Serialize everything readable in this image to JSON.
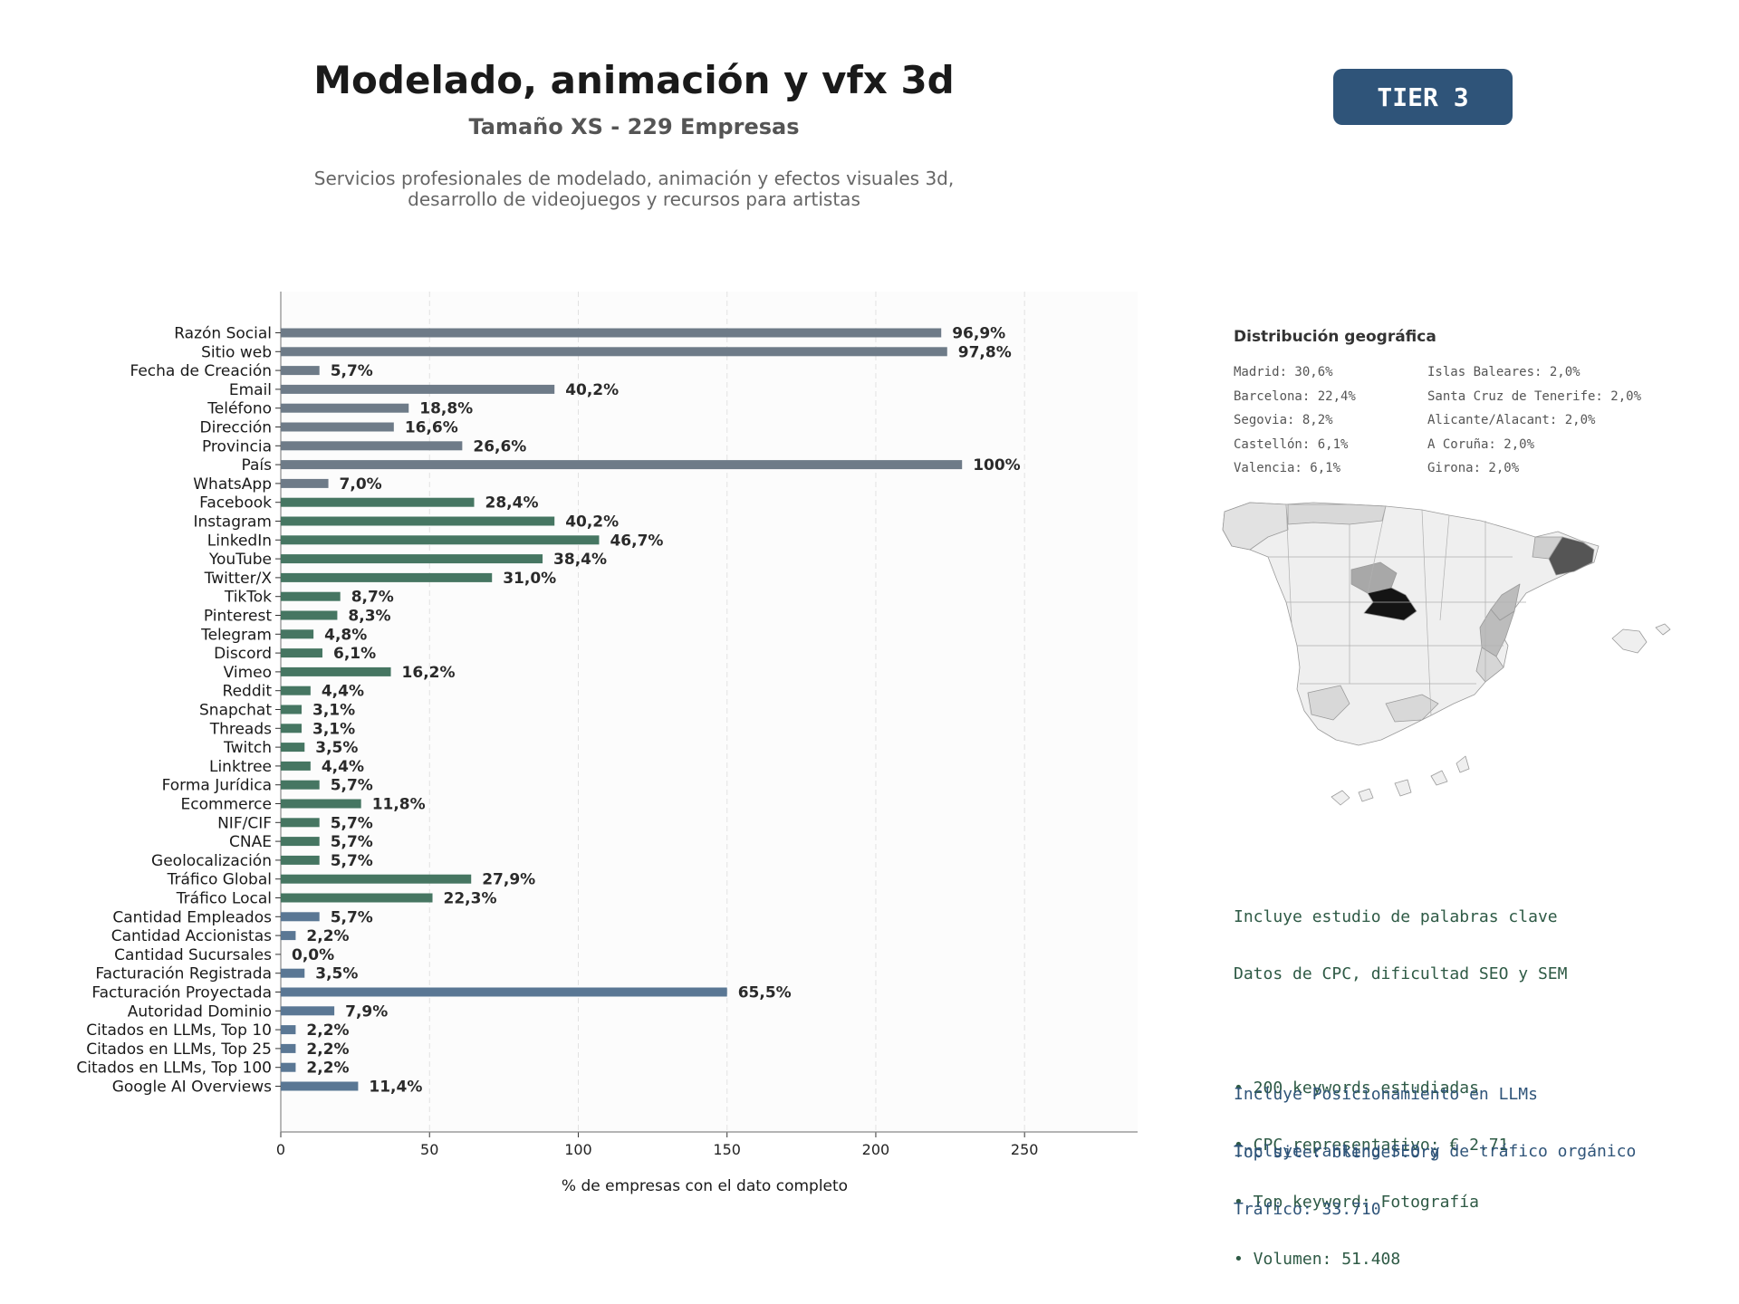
{
  "header": {
    "title": "Modelado, animación y vfx 3d",
    "subtitle": "Tamaño XS - 229 Empresas",
    "description_line1": "Servicios profesionales de modelado, animación y efectos visuales 3d,",
    "description_line2": "desarrollo de videojuegos y recursos para artistas",
    "tier": "TIER 3"
  },
  "chart_data": {
    "type": "bar",
    "orientation": "horizontal",
    "xlabel": "% de empresas con el dato completo",
    "xlim": [
      0,
      288
    ],
    "xticks": [
      0,
      50,
      100,
      150,
      200,
      250
    ],
    "grid": "vertical dashed",
    "categories": [
      "Razón Social",
      "Sitio web",
      "Fecha de Creación",
      "Email",
      "Teléfono",
      "Dirección",
      "Provincia",
      "País",
      "WhatsApp",
      "Facebook",
      "Instagram",
      "LinkedIn",
      "YouTube",
      "Twitter/X",
      "TikTok",
      "Pinterest",
      "Telegram",
      "Discord",
      "Vimeo",
      "Reddit",
      "Snapchat",
      "Threads",
      "Twitch",
      "Linktree",
      "Forma Jurídica",
      "Ecommerce",
      "NIF/CIF",
      "CNAE",
      "Geolocalización",
      "Tráfico Global",
      "Tráfico Local",
      "Cantidad Empleados",
      "Cantidad Accionistas",
      "Cantidad Sucursales",
      "Facturación Registrada",
      "Facturación Proyectada",
      "Autoridad Dominio",
      "Citados en LLMs, Top 10",
      "Citados en LLMs, Top 25",
      "Citados en LLMs, Top 100",
      "Google AI Overviews"
    ],
    "values": [
      222,
      224,
      13,
      92,
      43,
      38,
      61,
      229,
      16,
      65,
      92,
      107,
      88,
      71,
      20,
      19,
      11,
      14,
      37,
      10,
      7,
      7,
      8,
      10,
      13,
      27,
      13,
      13,
      13,
      64,
      51,
      13,
      5,
      0,
      8,
      150,
      18,
      5,
      5,
      5,
      26
    ],
    "labels": [
      "96,9%",
      "97,8%",
      "5,7%",
      "40,2%",
      "18,8%",
      "16,6%",
      "26,6%",
      "100%",
      "7,0%",
      "28,4%",
      "40,2%",
      "46,7%",
      "38,4%",
      "31,0%",
      "8,7%",
      "8,3%",
      "4,8%",
      "6,1%",
      "16,2%",
      "4,4%",
      "3,1%",
      "3,1%",
      "3,5%",
      "4,4%",
      "5,7%",
      "11,8%",
      "5,7%",
      "5,7%",
      "5,7%",
      "27,9%",
      "22,3%",
      "5,7%",
      "2,2%",
      "0,0%",
      "3,5%",
      "65,5%",
      "7,9%",
      "2,2%",
      "2,2%",
      "2,2%",
      "11,4%"
    ],
    "groups": [
      {
        "color": "#6e7b88",
        "count": 9
      },
      {
        "color": "#467662",
        "count": 22
      },
      {
        "color": "#5a7794",
        "count": 10
      }
    ]
  },
  "geo": {
    "title": "Distribución geográfica",
    "left": [
      "Madrid: 30,6%",
      "Barcelona: 22,4%",
      "Segovia: 8,2%",
      "Castellón: 6,1%",
      "Valencia: 6,1%"
    ],
    "right": [
      "Islas Baleares: 2,0%",
      "Santa Cruz de Tenerife: 2,0%",
      "Alicante/Alacant: 2,0%",
      "A Coruña: 2,0%",
      "Girona: 2,0%"
    ]
  },
  "keywords": {
    "line1": "Incluye estudio de palabras clave",
    "line2": "Datos de CPC, dificultad SEO y SEM",
    "item1": "• 200 keywords estudiadas",
    "item2": "• CPC representativo: € 2.71",
    "item3": "• Top keyword: Fotografía",
    "item4": "• Volumen: 51.408"
  },
  "llm": {
    "line1": "Incluye Posicionamiento en LLMs",
    "line2": "Incluye ranking SEO y de tráfico orgánico",
    "top_site": "Top site: blender.org",
    "traffic": "Tráfico: 33.710"
  }
}
